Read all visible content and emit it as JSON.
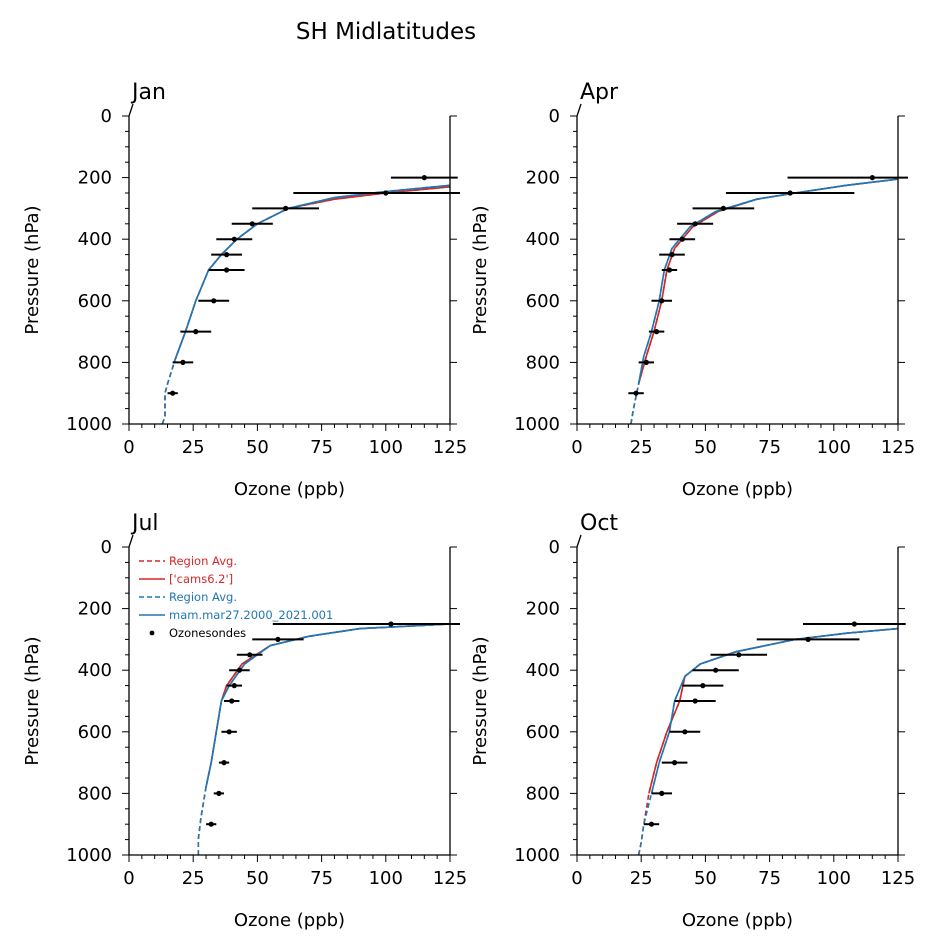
{
  "figure_title": "SH Midlatitudes",
  "colors": {
    "red": "#d62728",
    "blue": "#1f77b4",
    "black": "#000000"
  },
  "chart_data": [
    {
      "type": "line",
      "title": "Jan",
      "xlabel": "Ozone (ppb)",
      "ylabel": "Pressure (hPa)",
      "xlim": [
        0,
        125
      ],
      "ylim": [
        1000,
        0
      ],
      "xticks": [
        0,
        25,
        50,
        75,
        100,
        125
      ],
      "yticks": [
        0,
        200,
        400,
        600,
        800,
        1000
      ],
      "show_legend": false,
      "series": [
        {
          "name": "Region Avg. ['cams6.2'] (dashed)",
          "color": "#d62728",
          "dash": true,
          "x": [
            13,
            14,
            14,
            15,
            18,
            22,
            26,
            31,
            36,
            42,
            50,
            62,
            80,
            100,
            125
          ],
          "y": [
            1000,
            975,
            900,
            870,
            790,
            700,
            600,
            500,
            450,
            400,
            350,
            300,
            270,
            250,
            230
          ]
        },
        {
          "name": "['cams6.2']",
          "color": "#d62728",
          "dash": false,
          "x": [
            18,
            22,
            26,
            31,
            36,
            42,
            50,
            62,
            80,
            100,
            125
          ],
          "y": [
            790,
            700,
            600,
            500,
            450,
            400,
            350,
            300,
            270,
            250,
            230
          ]
        },
        {
          "name": "Region Avg. mam.mar27.2000_2021.001 (dashed)",
          "color": "#1f77b4",
          "dash": true,
          "x": [
            13,
            14,
            14,
            15,
            18,
            22,
            26,
            31,
            36,
            42,
            50,
            62,
            80,
            100,
            125
          ],
          "y": [
            1000,
            975,
            900,
            870,
            790,
            700,
            600,
            500,
            450,
            400,
            350,
            300,
            265,
            245,
            225
          ]
        },
        {
          "name": "mam.mar27.2000_2021.001",
          "color": "#1f77b4",
          "dash": false,
          "x": [
            18,
            22,
            26,
            31,
            36,
            42,
            50,
            62,
            80,
            100,
            125
          ],
          "y": [
            790,
            700,
            600,
            500,
            450,
            400,
            350,
            300,
            265,
            245,
            225
          ]
        }
      ],
      "sondes": {
        "name": "Ozonesondes",
        "p": [
          900,
          800,
          700,
          600,
          500,
          450,
          400,
          350,
          300,
          250,
          200
        ],
        "x": [
          17,
          21,
          26,
          33,
          38,
          38,
          41,
          48,
          61,
          100,
          115
        ],
        "xerr": [
          2,
          4,
          6,
          6,
          7,
          6,
          7,
          8,
          13,
          36,
          13
        ]
      }
    },
    {
      "type": "line",
      "title": "Apr",
      "xlabel": "Ozone (ppb)",
      "ylabel": "Pressure (hPa)",
      "xlim": [
        0,
        125
      ],
      "ylim": [
        1000,
        0
      ],
      "xticks": [
        0,
        25,
        50,
        75,
        100,
        125
      ],
      "yticks": [
        0,
        200,
        400,
        600,
        800,
        1000
      ],
      "show_legend": false,
      "series": [
        {
          "name": "Region Avg. ['cams6.2'] (dashed)",
          "color": "#d62728",
          "dash": true,
          "x": [
            21,
            22,
            24,
            27,
            30,
            33,
            35,
            38,
            45,
            55,
            70,
            85,
            105,
            125
          ],
          "y": [
            1000,
            950,
            870,
            780,
            700,
            600,
            500,
            430,
            360,
            310,
            270,
            250,
            225,
            205
          ]
        },
        {
          "name": "['cams6.2']",
          "color": "#d62728",
          "dash": false,
          "x": [
            24,
            27,
            30,
            33,
            35,
            38,
            45,
            55,
            70,
            85,
            105,
            125
          ],
          "y": [
            870,
            780,
            700,
            600,
            500,
            430,
            360,
            310,
            270,
            250,
            225,
            205
          ]
        },
        {
          "name": "Region Avg. mam.mar27.2000_2021.001 (dashed)",
          "color": "#1f77b4",
          "dash": true,
          "x": [
            21,
            22,
            24,
            26,
            29,
            32,
            34,
            37,
            44,
            54,
            70,
            85,
            105,
            125
          ],
          "y": [
            1000,
            950,
            870,
            780,
            700,
            600,
            500,
            430,
            360,
            310,
            270,
            250,
            225,
            205
          ]
        },
        {
          "name": "mam.mar27.2000_2021.001",
          "color": "#1f77b4",
          "dash": false,
          "x": [
            24,
            26,
            29,
            32,
            34,
            37,
            44,
            54,
            70,
            85,
            105,
            125
          ],
          "y": [
            870,
            780,
            700,
            600,
            500,
            430,
            360,
            310,
            270,
            250,
            225,
            205
          ]
        }
      ],
      "sondes": {
        "name": "Ozonesondes",
        "p": [
          900,
          800,
          700,
          600,
          500,
          450,
          400,
          350,
          300,
          250,
          200
        ],
        "x": [
          23,
          27,
          31,
          33,
          36,
          37,
          41,
          46,
          57,
          83,
          115
        ],
        "xerr": [
          3,
          3,
          3,
          4,
          3,
          5,
          5,
          7,
          12,
          25,
          33
        ]
      }
    },
    {
      "type": "line",
      "title": "Jul",
      "xlabel": "Ozone (ppb)",
      "ylabel": "Pressure (hPa)",
      "xlim": [
        0,
        125
      ],
      "ylim": [
        1000,
        0
      ],
      "xticks": [
        0,
        25,
        50,
        75,
        100,
        125
      ],
      "yticks": [
        0,
        200,
        400,
        600,
        800,
        1000
      ],
      "show_legend": true,
      "series": [
        {
          "name": "Region Avg.\n['cams6.2']",
          "label_lines": [
            "Region Avg.",
            "['cams6.2']"
          ],
          "color": "#d62728",
          "dash": true,
          "x": [
            27,
            27,
            28,
            30,
            32,
            34,
            36,
            38,
            44,
            55,
            70,
            90,
            125
          ],
          "y": [
            1000,
            950,
            880,
            780,
            700,
            600,
            500,
            450,
            380,
            320,
            290,
            265,
            250
          ]
        },
        {
          "name": "['cams6.2']",
          "color": "#d62728",
          "dash": false,
          "x": [
            30,
            32,
            34,
            36,
            38,
            44,
            55,
            70,
            90,
            125
          ],
          "y": [
            780,
            700,
            600,
            500,
            450,
            380,
            320,
            290,
            265,
            250
          ]
        },
        {
          "name": "Region Avg.\nmam.mar27.2000_2021.001",
          "label_lines": [
            "Region Avg.",
            "mam.mar27.2000_2021.001"
          ],
          "color": "#1f77b4",
          "dash": true,
          "x": [
            27,
            27,
            28,
            30,
            32,
            34,
            36,
            39,
            45,
            55,
            70,
            90,
            125
          ],
          "y": [
            1000,
            950,
            880,
            780,
            700,
            600,
            500,
            450,
            380,
            320,
            290,
            265,
            250
          ]
        },
        {
          "name": "mam.mar27.2000_2021.001",
          "color": "#1f77b4",
          "dash": false,
          "x": [
            30,
            32,
            34,
            36,
            39,
            45,
            55,
            70,
            90,
            125
          ],
          "y": [
            780,
            700,
            600,
            500,
            450,
            380,
            320,
            290,
            265,
            250
          ]
        }
      ],
      "legend": [
        "Region Avg.",
        "['cams6.2']",
        "Region Avg.",
        "mam.mar27.2000_2021.001",
        "Ozonesondes"
      ],
      "sondes": {
        "name": "Ozonesondes",
        "p": [
          900,
          800,
          700,
          600,
          500,
          450,
          400,
          350,
          300,
          250
        ],
        "x": [
          32,
          35,
          37,
          39,
          40,
          41,
          43,
          47,
          58,
          102
        ],
        "xerr": [
          2,
          2,
          2,
          3,
          3,
          3,
          4,
          5,
          10,
          46
        ]
      }
    },
    {
      "type": "line",
      "title": "Oct",
      "xlabel": "Ozone (ppb)",
      "ylabel": "Pressure (hPa)",
      "xlim": [
        0,
        125
      ],
      "ylim": [
        1000,
        0
      ],
      "xticks": [
        0,
        25,
        50,
        75,
        100,
        125
      ],
      "yticks": [
        0,
        200,
        400,
        600,
        800,
        1000
      ],
      "show_legend": false,
      "series": [
        {
          "name": "Region Avg. ['cams6.2'] (dashed)",
          "color": "#d62728",
          "dash": true,
          "x": [
            24,
            25,
            26,
            28,
            31,
            35,
            40,
            42,
            48,
            62,
            85,
            105,
            125
          ],
          "y": [
            1000,
            960,
            900,
            800,
            700,
            600,
            500,
            420,
            380,
            340,
            300,
            280,
            265
          ]
        },
        {
          "name": "['cams6.2']",
          "color": "#d62728",
          "dash": false,
          "x": [
            28,
            31,
            35,
            40,
            42,
            48,
            62,
            85,
            105,
            125
          ],
          "y": [
            800,
            700,
            600,
            500,
            420,
            380,
            340,
            300,
            280,
            265
          ]
        },
        {
          "name": "Region Avg. mam.mar27.2000_2021.001 (dashed)",
          "color": "#1f77b4",
          "dash": true,
          "x": [
            24,
            25,
            26,
            29,
            32,
            36,
            38,
            42,
            48,
            62,
            85,
            105,
            125
          ],
          "y": [
            1000,
            960,
            900,
            800,
            700,
            600,
            500,
            420,
            380,
            340,
            300,
            280,
            265
          ]
        },
        {
          "name": "mam.mar27.2000_2021.001",
          "color": "#1f77b4",
          "dash": false,
          "x": [
            29,
            32,
            36,
            38,
            42,
            48,
            62,
            85,
            105,
            125
          ],
          "y": [
            800,
            700,
            600,
            500,
            420,
            380,
            340,
            300,
            280,
            265
          ]
        }
      ],
      "sondes": {
        "name": "Ozonesondes",
        "p": [
          900,
          800,
          700,
          600,
          500,
          450,
          400,
          350,
          300,
          250
        ],
        "x": [
          29,
          33,
          38,
          42,
          46,
          49,
          54,
          63,
          90,
          108
        ],
        "xerr": [
          3,
          4,
          5,
          6,
          8,
          8,
          9,
          11,
          20,
          20
        ]
      }
    }
  ]
}
